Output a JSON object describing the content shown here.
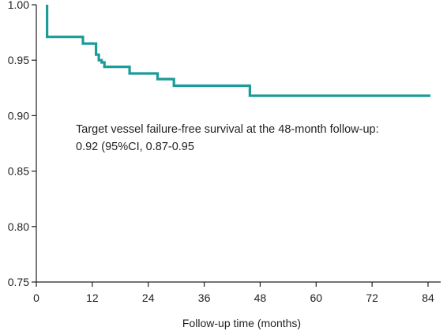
{
  "chart_data": {
    "type": "line",
    "step": true,
    "title": "",
    "xlabel": "Follow-up time (months)",
    "ylabel": "",
    "xlim": [
      0,
      86
    ],
    "ylim": [
      0.75,
      1.0
    ],
    "grid": false,
    "x_ticks": [
      0,
      12,
      24,
      36,
      48,
      60,
      72,
      84
    ],
    "y_ticks": [
      1.0,
      0.95,
      0.9,
      0.85,
      0.8,
      0.75
    ],
    "y_tick_labels": [
      "1.00",
      "0.95",
      "0.90",
      "0.85",
      "0.80",
      "0.75"
    ],
    "annotation": {
      "line1": "Target vessel failure-free survival at the 48-month follow-up:",
      "line2": "0.92 (95%CI, 0.87-0.95"
    },
    "series": [
      {
        "color": "#1b9c9a",
        "x": [
          2.3,
          2.3,
          10,
          10,
          12.8,
          12.8,
          13.4,
          13.4,
          14,
          14,
          14.6,
          14.6,
          20,
          20,
          26,
          26,
          29.5,
          29.5,
          45.8,
          45.8,
          84.5
        ],
        "y": [
          1.0,
          0.971,
          0.971,
          0.965,
          0.965,
          0.955,
          0.955,
          0.95,
          0.95,
          0.948,
          0.948,
          0.944,
          0.944,
          0.938,
          0.938,
          0.933,
          0.933,
          0.927,
          0.927,
          0.918,
          0.918
        ]
      }
    ]
  }
}
